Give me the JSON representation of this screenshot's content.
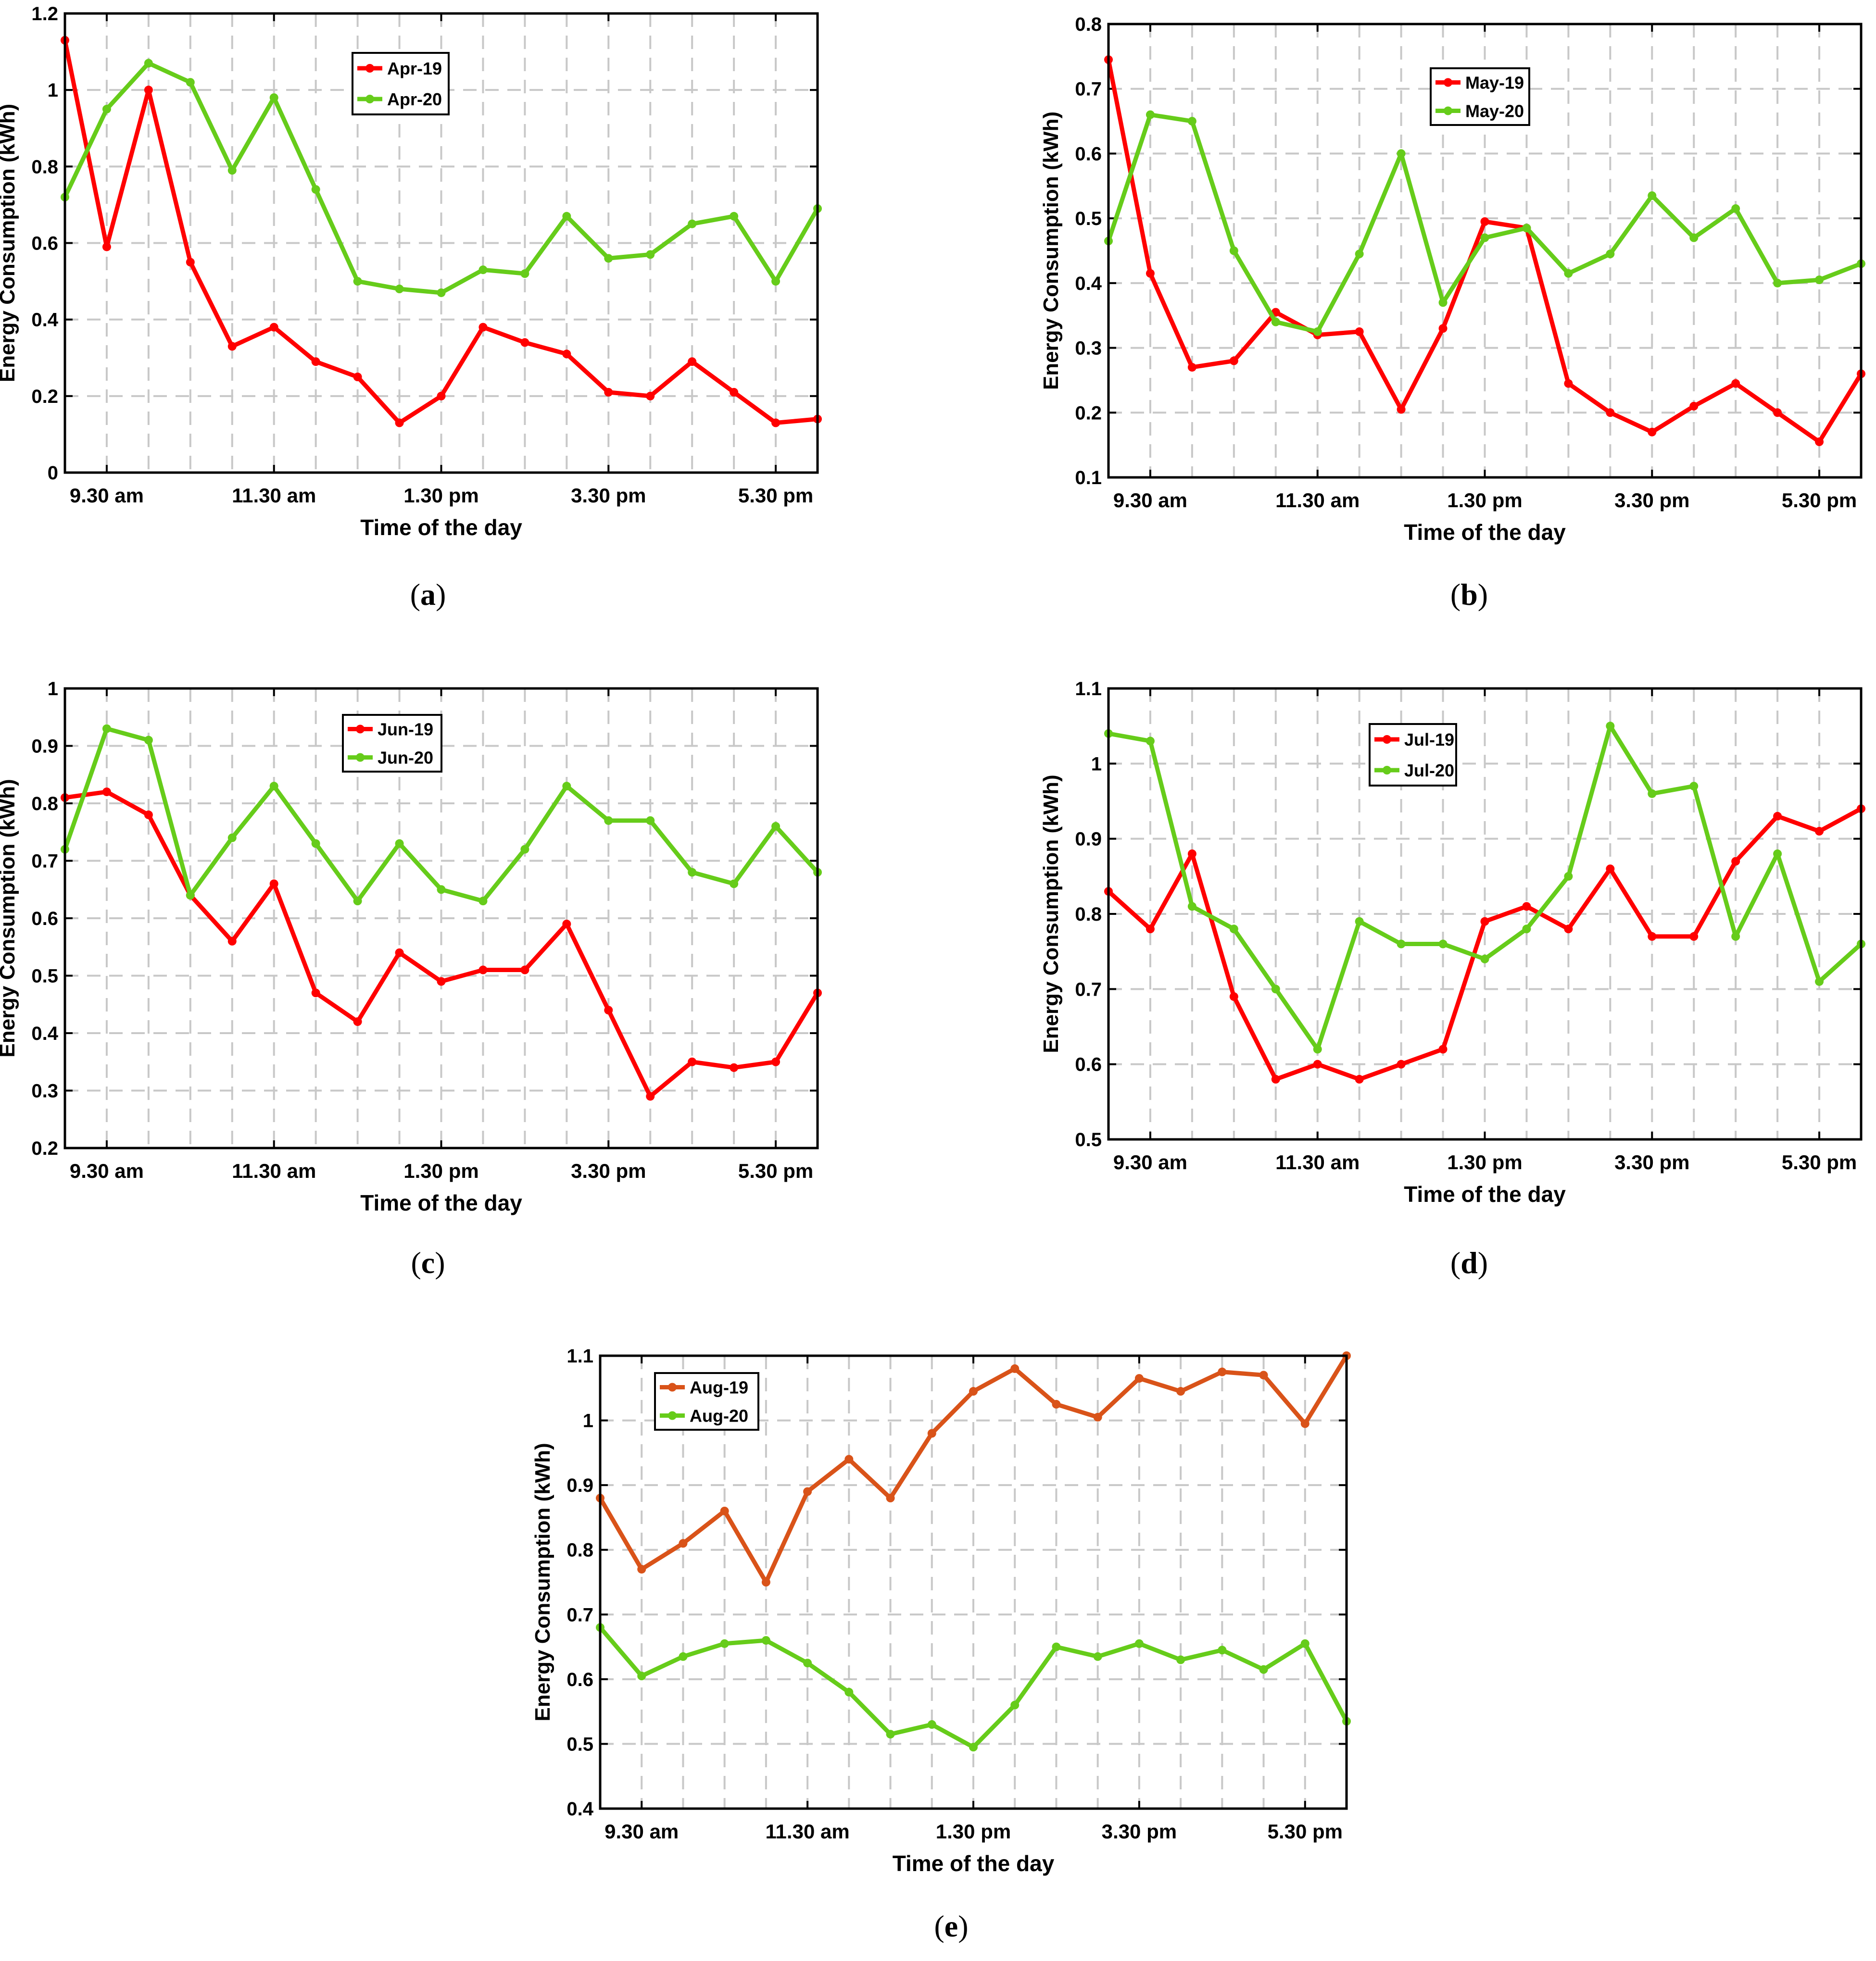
{
  "figure": {
    "panels": [
      {
        "caption_letter": "a",
        "caption_open": "(",
        "caption_close": ")"
      },
      {
        "caption_letter": "b",
        "caption_open": "(",
        "caption_close": ")"
      },
      {
        "caption_letter": "c",
        "caption_open": "(",
        "caption_close": ")"
      },
      {
        "caption_letter": "d",
        "caption_open": "(",
        "caption_close": ")"
      },
      {
        "caption_letter": "e",
        "caption_open": "(",
        "caption_close": ")"
      }
    ]
  },
  "colors": {
    "red": "#ff0000",
    "green": "#66cc1a",
    "orange": "#d95319",
    "grid": "#c8c8c8"
  },
  "chart_data": [
    {
      "type": "line",
      "id": "a",
      "xlabel": "Time of the day",
      "ylabel": "Energy Consumption (kWh)",
      "ylim": [
        0,
        1.2
      ],
      "yticks": [
        "0",
        "0.2",
        "0.4",
        "0.6",
        "0.8",
        "1",
        "1.2"
      ],
      "xtick_labels": [
        "9.30 am",
        "11.30 am",
        "1.30 pm",
        "3.30 pm",
        "5.30 pm"
      ],
      "legend_position": "top-center",
      "series": [
        {
          "name": "Apr-19",
          "color": "#ff0000",
          "values": [
            1.13,
            0.59,
            1.0,
            0.55,
            0.33,
            0.38,
            0.29,
            0.25,
            0.13,
            0.2,
            0.38,
            0.34,
            0.31,
            0.21,
            0.2,
            0.29,
            0.21,
            0.13,
            0.14
          ]
        },
        {
          "name": "Apr-20",
          "color": "#66cc1a",
          "values": [
            0.72,
            0.95,
            1.07,
            1.02,
            0.79,
            0.98,
            0.74,
            0.5,
            0.48,
            0.47,
            0.53,
            0.52,
            0.67,
            0.56,
            0.57,
            0.65,
            0.67,
            0.5,
            0.69
          ]
        }
      ]
    },
    {
      "type": "line",
      "id": "b",
      "xlabel": "Time of the day",
      "ylabel": "Energy Consumption (kWh)",
      "ylim": [
        0.1,
        0.8
      ],
      "yticks": [
        "0.1",
        "0.2",
        "0.3",
        "0.4",
        "0.5",
        "0.6",
        "0.7",
        "0.8"
      ],
      "xtick_labels": [
        "9.30 am",
        "11.30 am",
        "1.30 pm",
        "3.30 pm",
        "5.30 pm"
      ],
      "legend_position": "top-center",
      "series": [
        {
          "name": "May-19",
          "color": "#ff0000",
          "values": [
            0.745,
            0.415,
            0.27,
            0.28,
            0.355,
            0.32,
            0.325,
            0.205,
            0.33,
            0.495,
            0.485,
            0.245,
            0.2,
            0.17,
            0.21,
            0.245,
            0.2,
            0.155,
            0.26
          ]
        },
        {
          "name": "May-20",
          "color": "#66cc1a",
          "values": [
            0.465,
            0.66,
            0.65,
            0.45,
            0.34,
            0.325,
            0.445,
            0.6,
            0.37,
            0.47,
            0.485,
            0.415,
            0.445,
            0.535,
            0.47,
            0.515,
            0.4,
            0.405,
            0.43
          ]
        }
      ]
    },
    {
      "type": "line",
      "id": "c",
      "xlabel": "Time of the day",
      "ylabel": "Energy Consumption (kWh)",
      "ylim": [
        0.2,
        1.0
      ],
      "yticks": [
        "0.2",
        "0.3",
        "0.4",
        "0.5",
        "0.6",
        "0.7",
        "0.8",
        "0.9",
        "1"
      ],
      "xtick_labels": [
        "9.30 am",
        "11.30 am",
        "1.30 pm",
        "3.30 pm",
        "5.30 pm"
      ],
      "legend_position": "top-center",
      "series": [
        {
          "name": "Jun-19",
          "color": "#ff0000",
          "values": [
            0.81,
            0.82,
            0.78,
            0.64,
            0.56,
            0.66,
            0.47,
            0.42,
            0.54,
            0.49,
            0.51,
            0.51,
            0.59,
            0.44,
            0.29,
            0.35,
            0.34,
            0.35,
            0.47
          ]
        },
        {
          "name": "Jun-20",
          "color": "#66cc1a",
          "values": [
            0.72,
            0.93,
            0.91,
            0.64,
            0.74,
            0.83,
            0.73,
            0.63,
            0.73,
            0.65,
            0.63,
            0.72,
            0.83,
            0.77,
            0.77,
            0.68,
            0.66,
            0.76,
            0.68
          ]
        }
      ]
    },
    {
      "type": "line",
      "id": "d",
      "xlabel": "Time of the day",
      "ylabel": "Energy Consumption (kWh)",
      "ylim": [
        0.5,
        1.1
      ],
      "yticks": [
        "0.5",
        "0.6",
        "0.7",
        "0.8",
        "0.9",
        "1",
        "1.1"
      ],
      "xtick_labels": [
        "9.30 am",
        "11.30 am",
        "1.30 pm",
        "3.30 pm",
        "5.30 pm"
      ],
      "legend_position": "top-center",
      "series": [
        {
          "name": "Jul-19",
          "color": "#ff0000",
          "values": [
            0.83,
            0.78,
            0.88,
            0.69,
            0.58,
            0.6,
            0.58,
            0.6,
            0.62,
            0.79,
            0.81,
            0.78,
            0.86,
            0.77,
            0.77,
            0.87,
            0.93,
            0.91,
            0.94
          ]
        },
        {
          "name": "Jul-20",
          "color": "#66cc1a",
          "values": [
            1.04,
            1.03,
            0.81,
            0.78,
            0.7,
            0.62,
            0.79,
            0.76,
            0.76,
            0.74,
            0.78,
            0.85,
            1.05,
            0.96,
            0.97,
            0.77,
            0.88,
            0.71,
            0.76
          ]
        }
      ]
    },
    {
      "type": "line",
      "id": "e",
      "xlabel": "Time of the day",
      "ylabel": "Energy Consumption (kWh)",
      "ylim": [
        0.4,
        1.1
      ],
      "yticks": [
        "0.4",
        "0.5",
        "0.6",
        "0.7",
        "0.8",
        "0.9",
        "1",
        "1.1"
      ],
      "xtick_labels": [
        "9.30 am",
        "11.30 am",
        "1.30 pm",
        "3.30 pm",
        "5.30 pm"
      ],
      "legend_position": "top-left",
      "series": [
        {
          "name": "Aug-19",
          "color": "#d95319",
          "values": [
            0.88,
            0.77,
            0.81,
            0.86,
            0.75,
            0.89,
            0.94,
            0.88,
            0.98,
            1.045,
            1.08,
            1.025,
            1.005,
            1.065,
            1.045,
            1.075,
            1.07,
            0.995,
            1.1
          ]
        },
        {
          "name": "Aug-20",
          "color": "#66cc1a",
          "values": [
            0.68,
            0.605,
            0.635,
            0.655,
            0.66,
            0.625,
            0.58,
            0.515,
            0.53,
            0.495,
            0.56,
            0.65,
            0.635,
            0.655,
            0.63,
            0.645,
            0.615,
            0.655,
            0.535
          ]
        }
      ]
    }
  ]
}
